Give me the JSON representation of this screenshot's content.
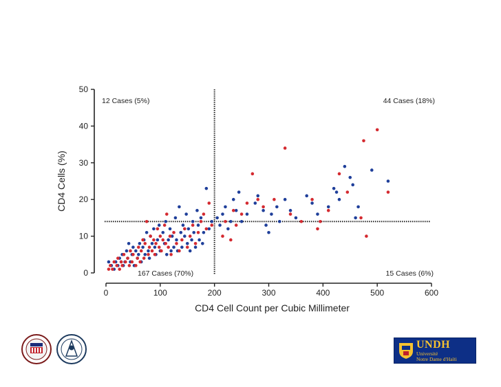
{
  "chart_data": {
    "type": "scatter",
    "title": "",
    "xlabel": "CD4 Cell Count per Cubic Millimeter",
    "ylabel": "CD4 Cells (%)",
    "xlim": [
      0,
      600
    ],
    "ylim": [
      0,
      50
    ],
    "xticks": [
      0,
      100,
      200,
      300,
      400,
      500,
      600
    ],
    "yticks": [
      0,
      10,
      20,
      30,
      40,
      50
    ],
    "threshold_x": 200,
    "threshold_y": 14,
    "quadrant_labels": {
      "top_left": "12 Cases (5%)",
      "top_right": "44 Cases (18%)",
      "bottom_left": "167 Cases (70%)",
      "bottom_right": "15 Cases (6%)"
    },
    "series": [
      {
        "name": "blue",
        "color": "#1f3f9a",
        "points": [
          [
            5,
            3
          ],
          [
            10,
            2
          ],
          [
            15,
            1
          ],
          [
            18,
            3
          ],
          [
            22,
            2
          ],
          [
            25,
            4
          ],
          [
            28,
            3
          ],
          [
            30,
            5
          ],
          [
            32,
            2
          ],
          [
            35,
            3
          ],
          [
            38,
            6
          ],
          [
            40,
            4
          ],
          [
            42,
            8
          ],
          [
            45,
            3
          ],
          [
            48,
            5
          ],
          [
            50,
            7
          ],
          [
            52,
            2
          ],
          [
            55,
            6
          ],
          [
            58,
            4
          ],
          [
            60,
            5
          ],
          [
            62,
            8
          ],
          [
            65,
            3
          ],
          [
            68,
            7
          ],
          [
            70,
            9
          ],
          [
            72,
            5
          ],
          [
            75,
            11
          ],
          [
            78,
            6
          ],
          [
            80,
            4
          ],
          [
            82,
            10
          ],
          [
            85,
            8
          ],
          [
            88,
            12
          ],
          [
            90,
            7
          ],
          [
            92,
            5
          ],
          [
            95,
            9
          ],
          [
            98,
            13
          ],
          [
            100,
            6
          ],
          [
            105,
            11
          ],
          [
            108,
            8
          ],
          [
            110,
            14
          ],
          [
            112,
            5
          ],
          [
            115,
            9
          ],
          [
            118,
            12
          ],
          [
            120,
            6
          ],
          [
            122,
            10
          ],
          [
            125,
            7
          ],
          [
            128,
            15
          ],
          [
            130,
            9
          ],
          [
            132,
            6
          ],
          [
            135,
            18
          ],
          [
            138,
            11
          ],
          [
            140,
            7
          ],
          [
            142,
            13
          ],
          [
            145,
            10
          ],
          [
            148,
            16
          ],
          [
            150,
            8
          ],
          [
            152,
            12
          ],
          [
            155,
            6
          ],
          [
            158,
            9
          ],
          [
            160,
            14
          ],
          [
            162,
            11
          ],
          [
            165,
            7
          ],
          [
            168,
            17
          ],
          [
            170,
            13
          ],
          [
            172,
            9
          ],
          [
            175,
            15
          ],
          [
            178,
            8
          ],
          [
            180,
            11
          ],
          [
            185,
            23
          ],
          [
            190,
            12
          ],
          [
            195,
            14
          ],
          [
            205,
            15
          ],
          [
            210,
            13
          ],
          [
            215,
            16
          ],
          [
            220,
            18
          ],
          [
            225,
            12
          ],
          [
            230,
            14
          ],
          [
            235,
            20
          ],
          [
            240,
            17
          ],
          [
            245,
            22
          ],
          [
            250,
            14
          ],
          [
            260,
            16
          ],
          [
            275,
            19
          ],
          [
            280,
            21
          ],
          [
            290,
            17
          ],
          [
            295,
            13
          ],
          [
            300,
            11
          ],
          [
            305,
            16
          ],
          [
            315,
            18
          ],
          [
            320,
            14
          ],
          [
            330,
            20
          ],
          [
            340,
            17
          ],
          [
            350,
            15
          ],
          [
            370,
            21
          ],
          [
            380,
            19
          ],
          [
            390,
            16
          ],
          [
            410,
            18
          ],
          [
            420,
            23
          ],
          [
            425,
            22
          ],
          [
            430,
            20
          ],
          [
            440,
            29
          ],
          [
            450,
            26
          ],
          [
            455,
            24
          ],
          [
            460,
            15
          ],
          [
            465,
            18
          ],
          [
            490,
            28
          ],
          [
            520,
            25
          ]
        ]
      },
      {
        "name": "red",
        "color": "#d42a30",
        "points": [
          [
            5,
            1
          ],
          [
            8,
            2
          ],
          [
            12,
            1
          ],
          [
            15,
            3
          ],
          [
            20,
            2
          ],
          [
            22,
            4
          ],
          [
            25,
            1
          ],
          [
            28,
            3
          ],
          [
            30,
            2
          ],
          [
            33,
            5
          ],
          [
            36,
            3
          ],
          [
            40,
            4
          ],
          [
            43,
            2
          ],
          [
            45,
            6
          ],
          [
            48,
            3
          ],
          [
            50,
            5
          ],
          [
            55,
            2
          ],
          [
            58,
            4
          ],
          [
            60,
            7
          ],
          [
            63,
            3
          ],
          [
            65,
            6
          ],
          [
            68,
            9
          ],
          [
            70,
            4
          ],
          [
            72,
            8
          ],
          [
            75,
            14
          ],
          [
            78,
            5
          ],
          [
            80,
            7
          ],
          [
            82,
            10
          ],
          [
            85,
            6
          ],
          [
            88,
            9
          ],
          [
            90,
            5
          ],
          [
            92,
            8
          ],
          [
            95,
            12
          ],
          [
            98,
            7
          ],
          [
            100,
            10
          ],
          [
            102,
            6
          ],
          [
            105,
            9
          ],
          [
            108,
            13
          ],
          [
            110,
            8
          ],
          [
            112,
            16
          ],
          [
            115,
            7
          ],
          [
            118,
            10
          ],
          [
            120,
            5
          ],
          [
            125,
            11
          ],
          [
            130,
            8
          ],
          [
            135,
            6
          ],
          [
            140,
            9
          ],
          [
            145,
            12
          ],
          [
            150,
            7
          ],
          [
            155,
            10
          ],
          [
            160,
            13
          ],
          [
            165,
            8
          ],
          [
            170,
            11
          ],
          [
            175,
            14
          ],
          [
            180,
            16
          ],
          [
            185,
            12
          ],
          [
            190,
            19
          ],
          [
            195,
            13
          ],
          [
            215,
            10
          ],
          [
            220,
            14
          ],
          [
            230,
            9
          ],
          [
            235,
            17
          ],
          [
            240,
            13
          ],
          [
            250,
            16
          ],
          [
            260,
            19
          ],
          [
            270,
            27
          ],
          [
            280,
            20
          ],
          [
            290,
            18
          ],
          [
            310,
            20
          ],
          [
            330,
            34
          ],
          [
            340,
            16
          ],
          [
            360,
            14
          ],
          [
            380,
            20
          ],
          [
            390,
            12
          ],
          [
            395,
            14
          ],
          [
            410,
            17
          ],
          [
            430,
            27
          ],
          [
            445,
            22
          ],
          [
            470,
            15
          ],
          [
            475,
            36
          ],
          [
            480,
            10
          ],
          [
            500,
            39
          ],
          [
            520,
            22
          ]
        ]
      }
    ]
  },
  "logos": {
    "undh_title": "UNDH",
    "undh_line1": "Université",
    "undh_line2": "Notre Dame d'Haïti"
  }
}
